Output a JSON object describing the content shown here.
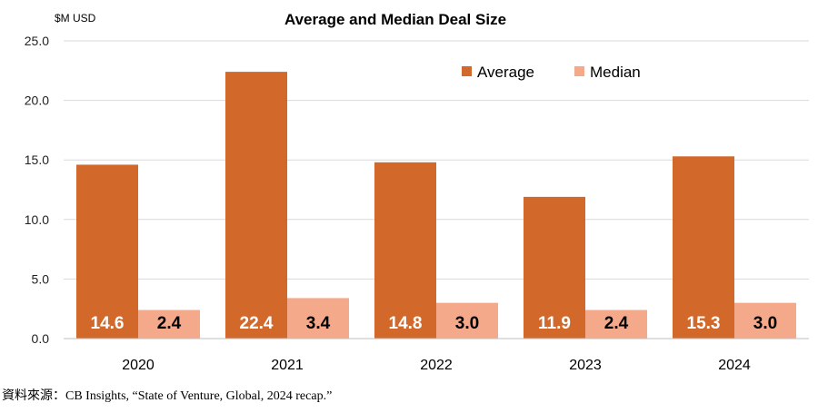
{
  "chart_data": {
    "type": "bar",
    "title": "Average and Median Deal Size",
    "unit_label": "$M USD",
    "categories": [
      "2020",
      "2021",
      "2022",
      "2023",
      "2024"
    ],
    "series": [
      {
        "name": "Average",
        "values": [
          14.6,
          22.4,
          14.8,
          11.9,
          15.3
        ],
        "color": "#D2692A",
        "label_color": "#ffffff"
      },
      {
        "name": "Median",
        "values": [
          2.4,
          3.4,
          3.0,
          2.4,
          3.0
        ],
        "color": "#F4A98A",
        "label_color": "#000000"
      }
    ],
    "yticks": [
      "0.0",
      "5.0",
      "10.0",
      "15.0",
      "20.0",
      "25.0"
    ],
    "ylim": [
      0,
      25
    ],
    "grid": true,
    "legend_position": "top-right"
  },
  "source": "資料來源：CB Insights, “State of Venture, Global, 2024 recap.”"
}
